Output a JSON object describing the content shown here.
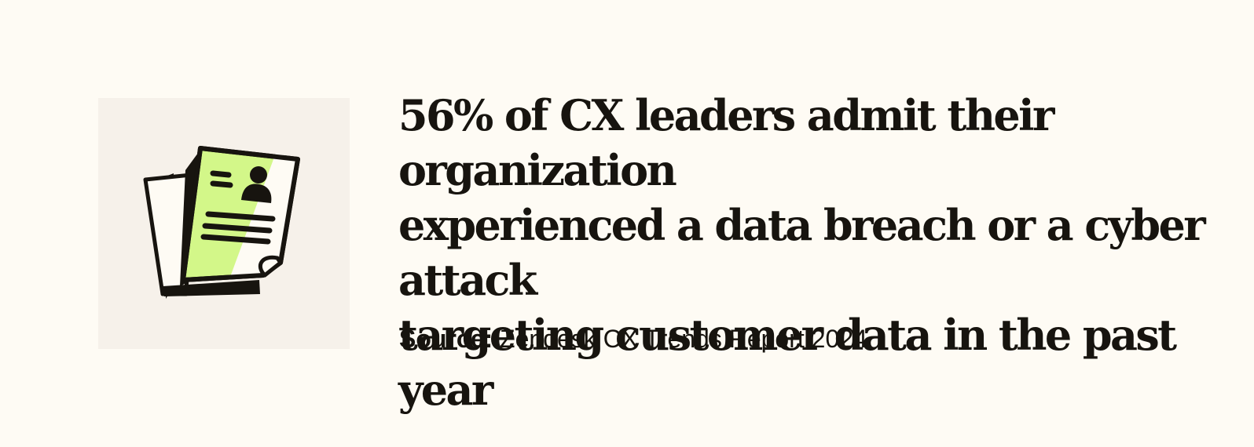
{
  "illustration": {
    "icon": "profile-document-icon",
    "colors": {
      "tile": "#f6f1ea",
      "accent": "#d3f789",
      "ink": "#17140f",
      "paper": "#fefbf4"
    }
  },
  "headline": {
    "line1": "56% of CX leaders admit their organization",
    "line2": "experienced a data breach or a cyber attack",
    "line3": "targeting customer data in the past year"
  },
  "source": {
    "label": "Source:",
    "text": "Zendesk CX Trends Report 2024"
  }
}
